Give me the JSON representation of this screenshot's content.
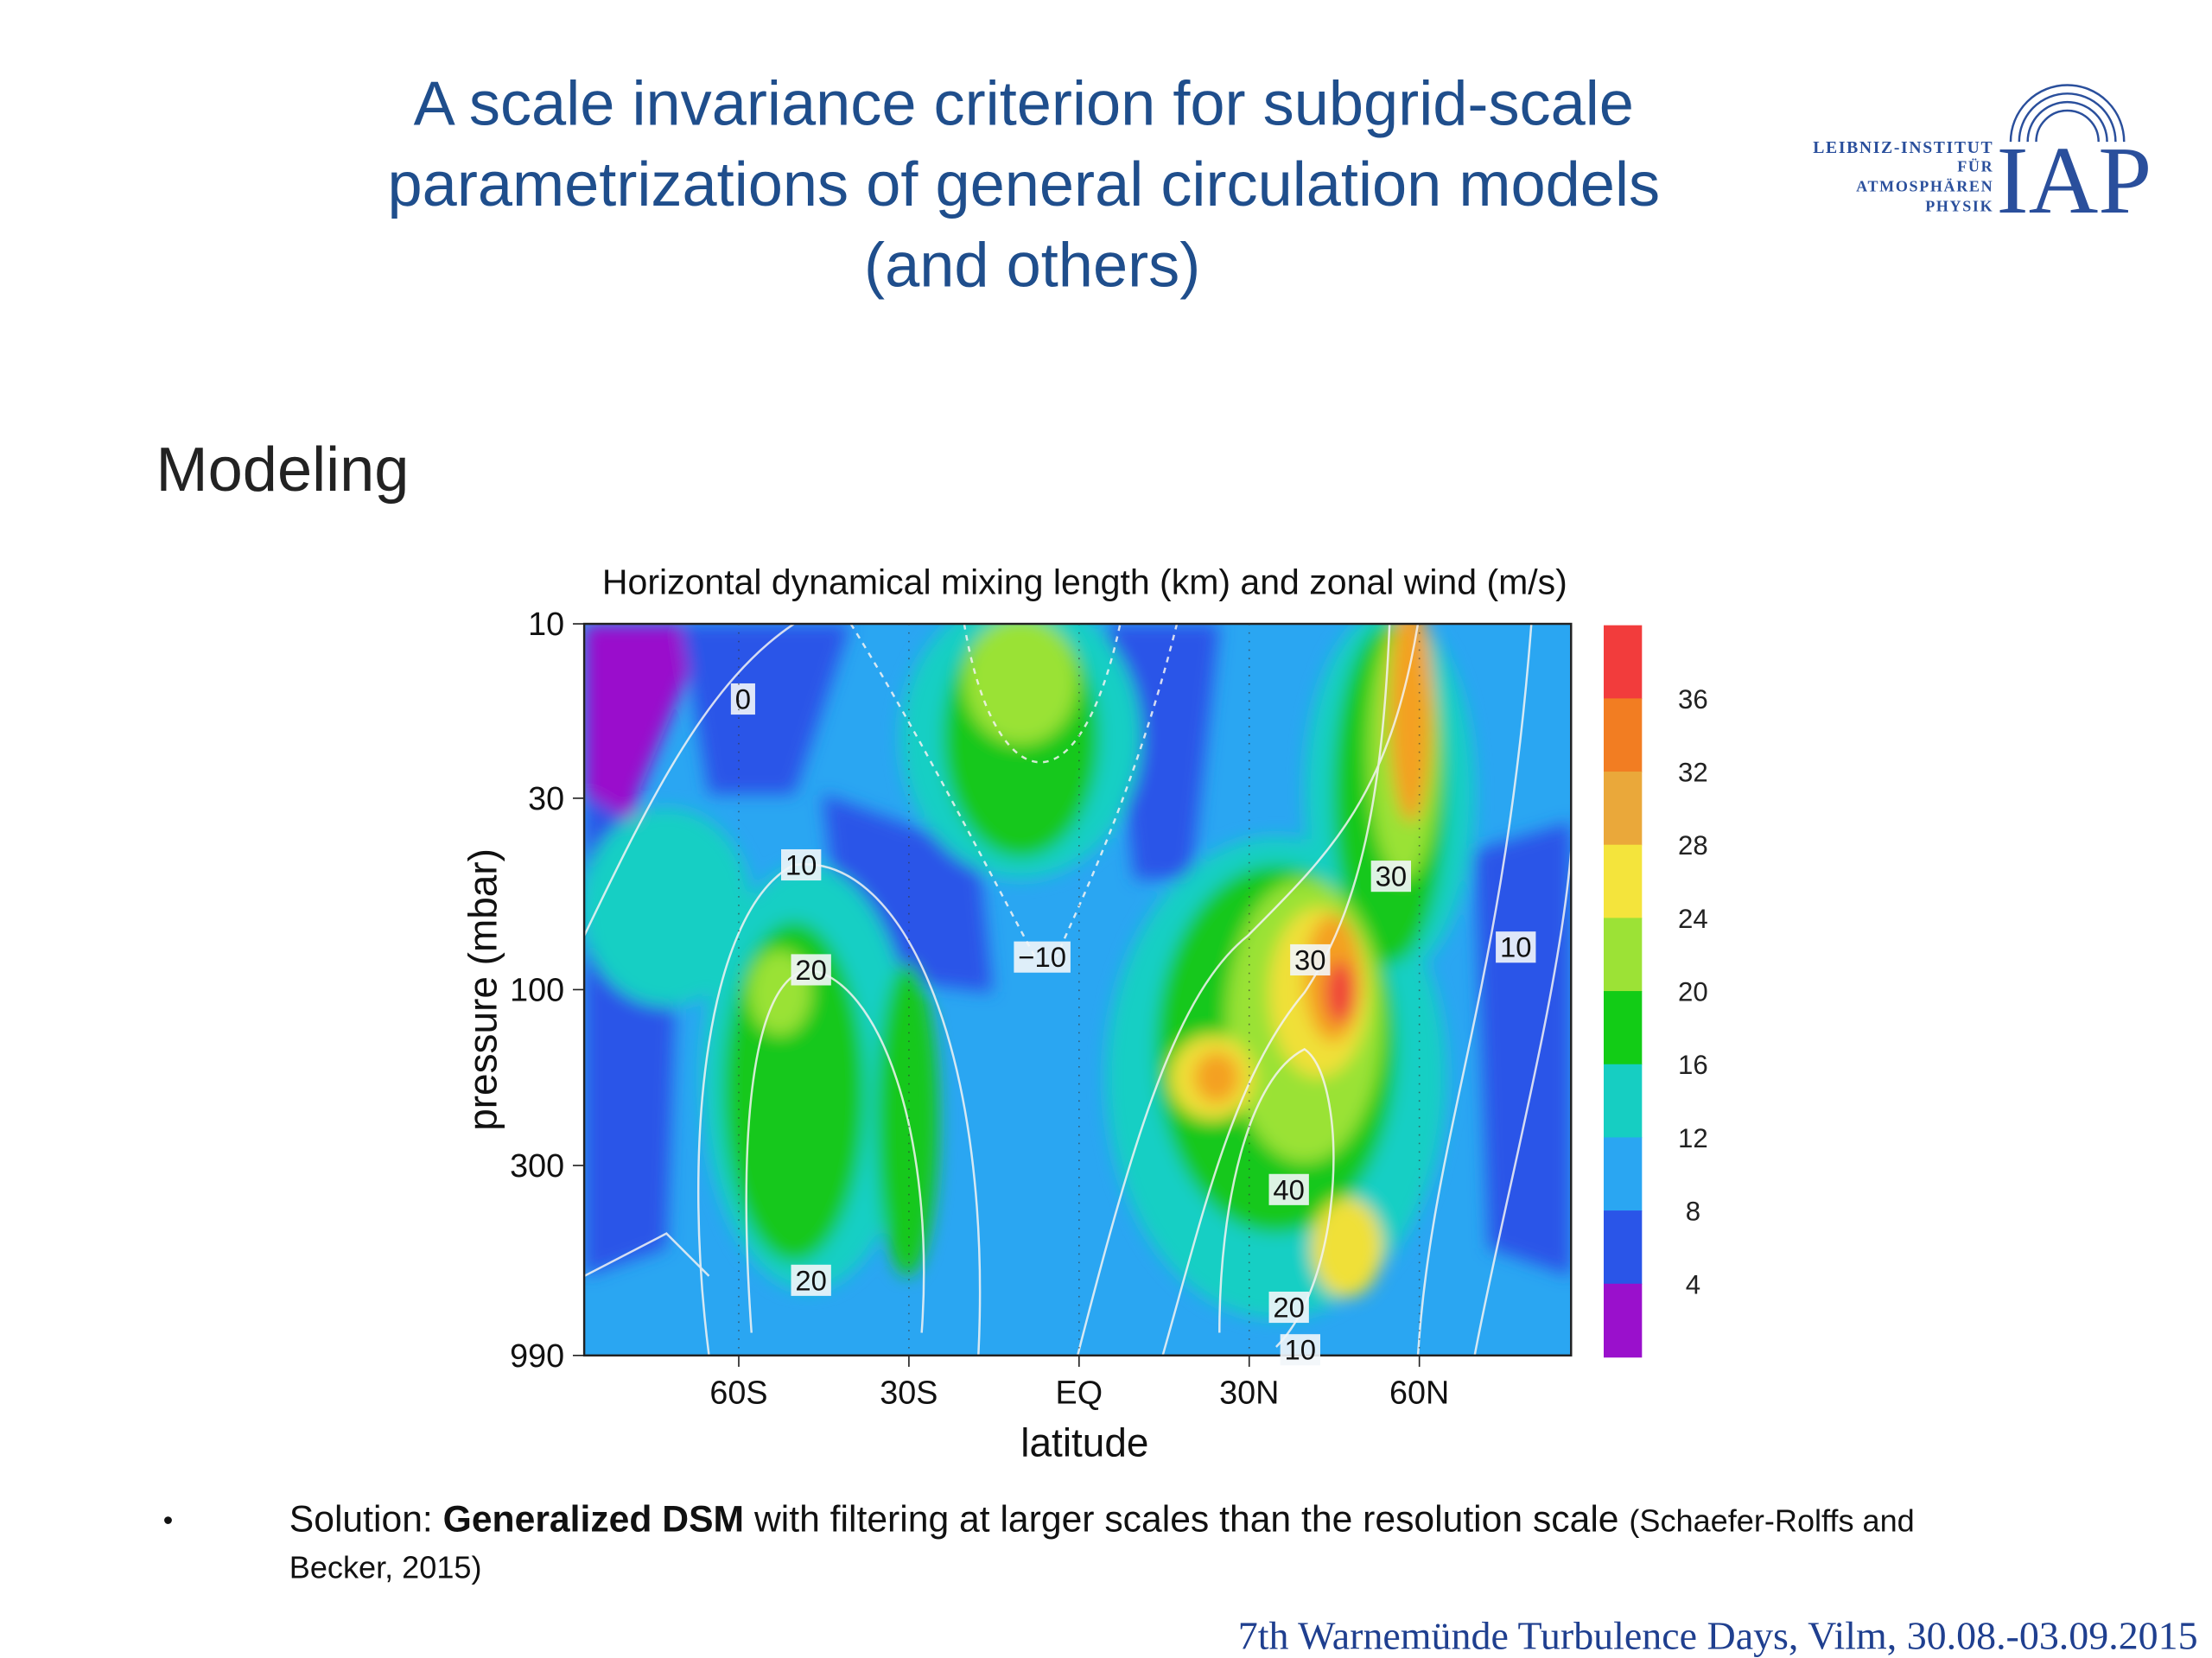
{
  "header": {
    "title": [
      "A scale invariance criterion for subgrid-scale",
      "parametrizations of general circulation models",
      "(and others)"
    ],
    "logo": {
      "lines": [
        "LEIBNIZ-INSTITUT",
        "FÜR",
        "ATMOSPHÄREN",
        "PHYSIK"
      ],
      "mark": "IAP"
    }
  },
  "section": "Modeling",
  "figure": {
    "title": "Horizontal dynamical mixing length (km) and zonal wind (m/s)",
    "x_label": "latitude",
    "y_label": "pressure (mbar)",
    "x_ticks": [
      "60S",
      "30S",
      "EQ",
      "30N",
      "60N"
    ],
    "y_ticks": [
      "10",
      "30",
      "100",
      "300",
      "990"
    ],
    "colorbar_ticks": [
      "36",
      "32",
      "28",
      "24",
      "20",
      "16",
      "12",
      "8",
      "4"
    ],
    "contour_labels": [
      "0",
      "10",
      "20",
      "20",
      "−10",
      "30",
      "30",
      "10",
      "40",
      "20",
      "10"
    ]
  },
  "bullet": {
    "parts": [
      "Solution: ",
      "Generalized DSM",
      " with filtering at larger scales than the resolution scale ",
      "(Schaefer-Rolffs and",
      "Becker, 2015)"
    ]
  },
  "footer": "7th Warnemünde Turbulence Days, Vilm, 30.08.-03.09.2015"
}
